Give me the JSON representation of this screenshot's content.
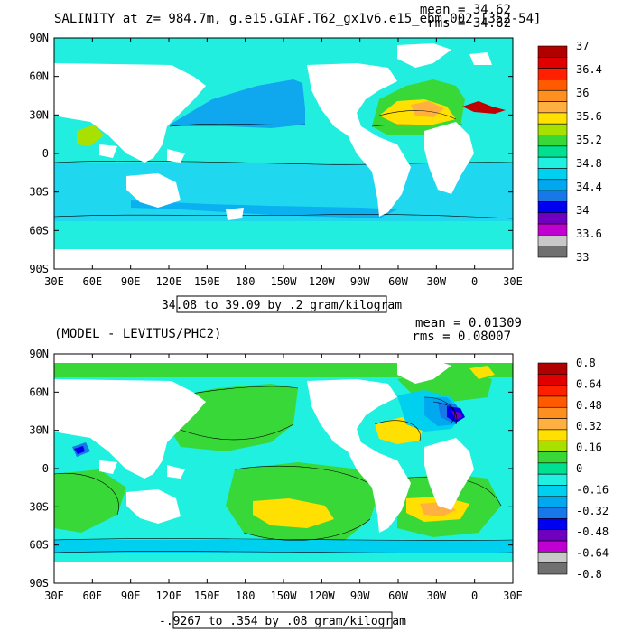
{
  "chart_data": [
    {
      "type": "heatmap",
      "title": "SALINITY at z=  984.7m, g.e15.GIAF.T62_gx1v6.e15_ebm.002 [352-54]",
      "stats": {
        "mean_label": "mean = 34.62",
        "rms_label": "rms = 34.62"
      },
      "range_label": "34.08 to 39.09 by .2 gram/kilogram",
      "x_ticks": [
        "30E",
        "60E",
        "90E",
        "120E",
        "150E",
        "180",
        "150W",
        "120W",
        "90W",
        "60W",
        "30W",
        "0",
        "30E"
      ],
      "y_ticks": [
        "90N",
        "60N",
        "30N",
        "0",
        "30S",
        "60S",
        "90S"
      ],
      "colorbar": {
        "labels": [
          "37",
          "36.4",
          "36",
          "35.6",
          "35.2",
          "34.8",
          "34.4",
          "34",
          "33.6",
          "33"
        ],
        "colors": [
          "#b00000",
          "#e00000",
          "#ff2000",
          "#ff5a00",
          "#ff9020",
          "#ffb040",
          "#ffe000",
          "#a8e000",
          "#38d838",
          "#00e090",
          "#20f0e0",
          "#00d0f0",
          "#00a8f0",
          "#1878e8",
          "#0000f0",
          "#7000c0",
          "#c000d0",
          "#c8c8c8",
          "#707070"
        ]
      },
      "ylim": [
        -90,
        90
      ]
    },
    {
      "type": "heatmap",
      "title": "(MODEL - LEVITUS/PHC2)",
      "stats": {
        "mean_label": "mean = 0.01309",
        "rms_label": "rms = 0.08007"
      },
      "range_label": "-.9267 to .354 by .08 gram/kilogram",
      "x_ticks": [
        "30E",
        "60E",
        "90E",
        "120E",
        "150E",
        "180",
        "150W",
        "120W",
        "90W",
        "60W",
        "30W",
        "0",
        "30E"
      ],
      "y_ticks": [
        "90N",
        "60N",
        "30N",
        "0",
        "30S",
        "60S",
        "90S"
      ],
      "colorbar": {
        "labels": [
          "0.8",
          "0.64",
          "0.48",
          "0.32",
          "0.16",
          "0",
          "-0.16",
          "-0.32",
          "-0.48",
          "-0.64",
          "-0.8"
        ],
        "colors": [
          "#b00000",
          "#e00000",
          "#ff2000",
          "#ff5a00",
          "#ff9020",
          "#ffb040",
          "#ffe000",
          "#a8e000",
          "#38d838",
          "#00e090",
          "#20f0e0",
          "#00d0f0",
          "#00a8f0",
          "#1878e8",
          "#0000f0",
          "#7000c0",
          "#c000d0",
          "#c8c8c8",
          "#707070"
        ]
      },
      "ylim": [
        -90,
        90
      ]
    }
  ]
}
